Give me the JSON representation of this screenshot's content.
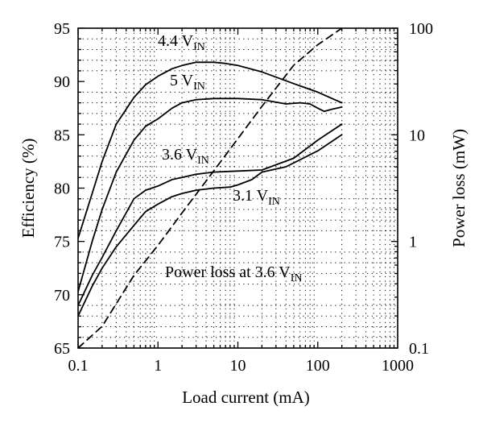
{
  "chart_data": {
    "type": "line",
    "xlabel": "Load current (mA)",
    "ylabel_left": "Efficiency (%)",
    "ylabel_right": "Power loss (mW)",
    "x_scale": "log",
    "xlim": [
      0.1,
      1000
    ],
    "ylim_left": [
      65,
      95
    ],
    "ylim_right": [
      0.1,
      100
    ],
    "y_right_scale": "log",
    "grid": "dotted",
    "x_ticks": [
      "0.1",
      "1",
      "10",
      "100",
      "1000"
    ],
    "y_left_ticks": [
      "65",
      "70",
      "75",
      "80",
      "85",
      "90",
      "95"
    ],
    "y_right_ticks": [
      "0.1",
      "1",
      "10",
      "100"
    ],
    "series": [
      {
        "name": "4.4 V_IN",
        "axis": "left",
        "style": "solid",
        "label_main": "4.4 V",
        "label_sub": "IN",
        "x": [
          0.1,
          0.15,
          0.2,
          0.3,
          0.5,
          0.7,
          1,
          1.5,
          2,
          3,
          5,
          7,
          10,
          20,
          50,
          100,
          200
        ],
        "y": [
          75.3,
          79.5,
          82.5,
          86.0,
          88.5,
          89.7,
          90.5,
          91.2,
          91.5,
          91.8,
          91.8,
          91.7,
          91.5,
          90.9,
          89.8,
          89.0,
          88.0
        ]
      },
      {
        "name": "5 V_IN",
        "axis": "left",
        "style": "solid",
        "label_main": "5 V",
        "label_sub": "IN",
        "x": [
          0.1,
          0.15,
          0.2,
          0.3,
          0.5,
          0.7,
          1,
          1.5,
          2,
          3,
          5,
          10,
          20,
          40,
          60,
          80,
          100,
          120,
          150,
          200
        ],
        "y": [
          70.3,
          75.0,
          78.0,
          81.5,
          84.5,
          85.8,
          86.5,
          87.5,
          88.0,
          88.3,
          88.4,
          88.4,
          88.3,
          87.9,
          88.0,
          87.9,
          87.5,
          87.2,
          87.4,
          87.6
        ]
      },
      {
        "name": "3.6 V_IN",
        "axis": "left",
        "style": "solid",
        "label_main": "3.6 V",
        "label_sub": "IN",
        "x": [
          0.1,
          0.15,
          0.2,
          0.3,
          0.5,
          0.7,
          1,
          1.5,
          2,
          3,
          5,
          10,
          20,
          50,
          100,
          200
        ],
        "y": [
          69.0,
          71.8,
          73.5,
          76.0,
          79.0,
          79.8,
          80.2,
          80.8,
          81.0,
          81.3,
          81.5,
          81.6,
          81.7,
          82.8,
          84.5,
          86.0
        ]
      },
      {
        "name": "3.1 V_IN",
        "axis": "left",
        "style": "solid",
        "label_main": "3.1 V",
        "label_sub": "IN",
        "x": [
          0.1,
          0.15,
          0.2,
          0.3,
          0.5,
          0.7,
          1,
          1.5,
          2,
          3,
          5,
          8,
          10,
          15,
          20,
          40,
          100,
          200
        ],
        "y": [
          68.0,
          70.8,
          72.5,
          74.5,
          76.5,
          77.8,
          78.5,
          79.2,
          79.5,
          79.8,
          80.0,
          80.1,
          80.3,
          80.8,
          81.5,
          82.0,
          83.5,
          85.0
        ]
      },
      {
        "name": "Power loss at 3.6 V_IN",
        "axis": "right",
        "style": "dashed",
        "label_main": "Power loss at 3.6 V",
        "label_sub": "IN",
        "x": [
          0.1,
          0.2,
          0.5,
          1,
          2,
          5,
          10,
          20,
          50,
          100,
          200
        ],
        "y": [
          0.1,
          0.16,
          0.48,
          0.92,
          1.85,
          4.6,
          9.2,
          18.5,
          45,
          70,
          100
        ]
      }
    ]
  }
}
